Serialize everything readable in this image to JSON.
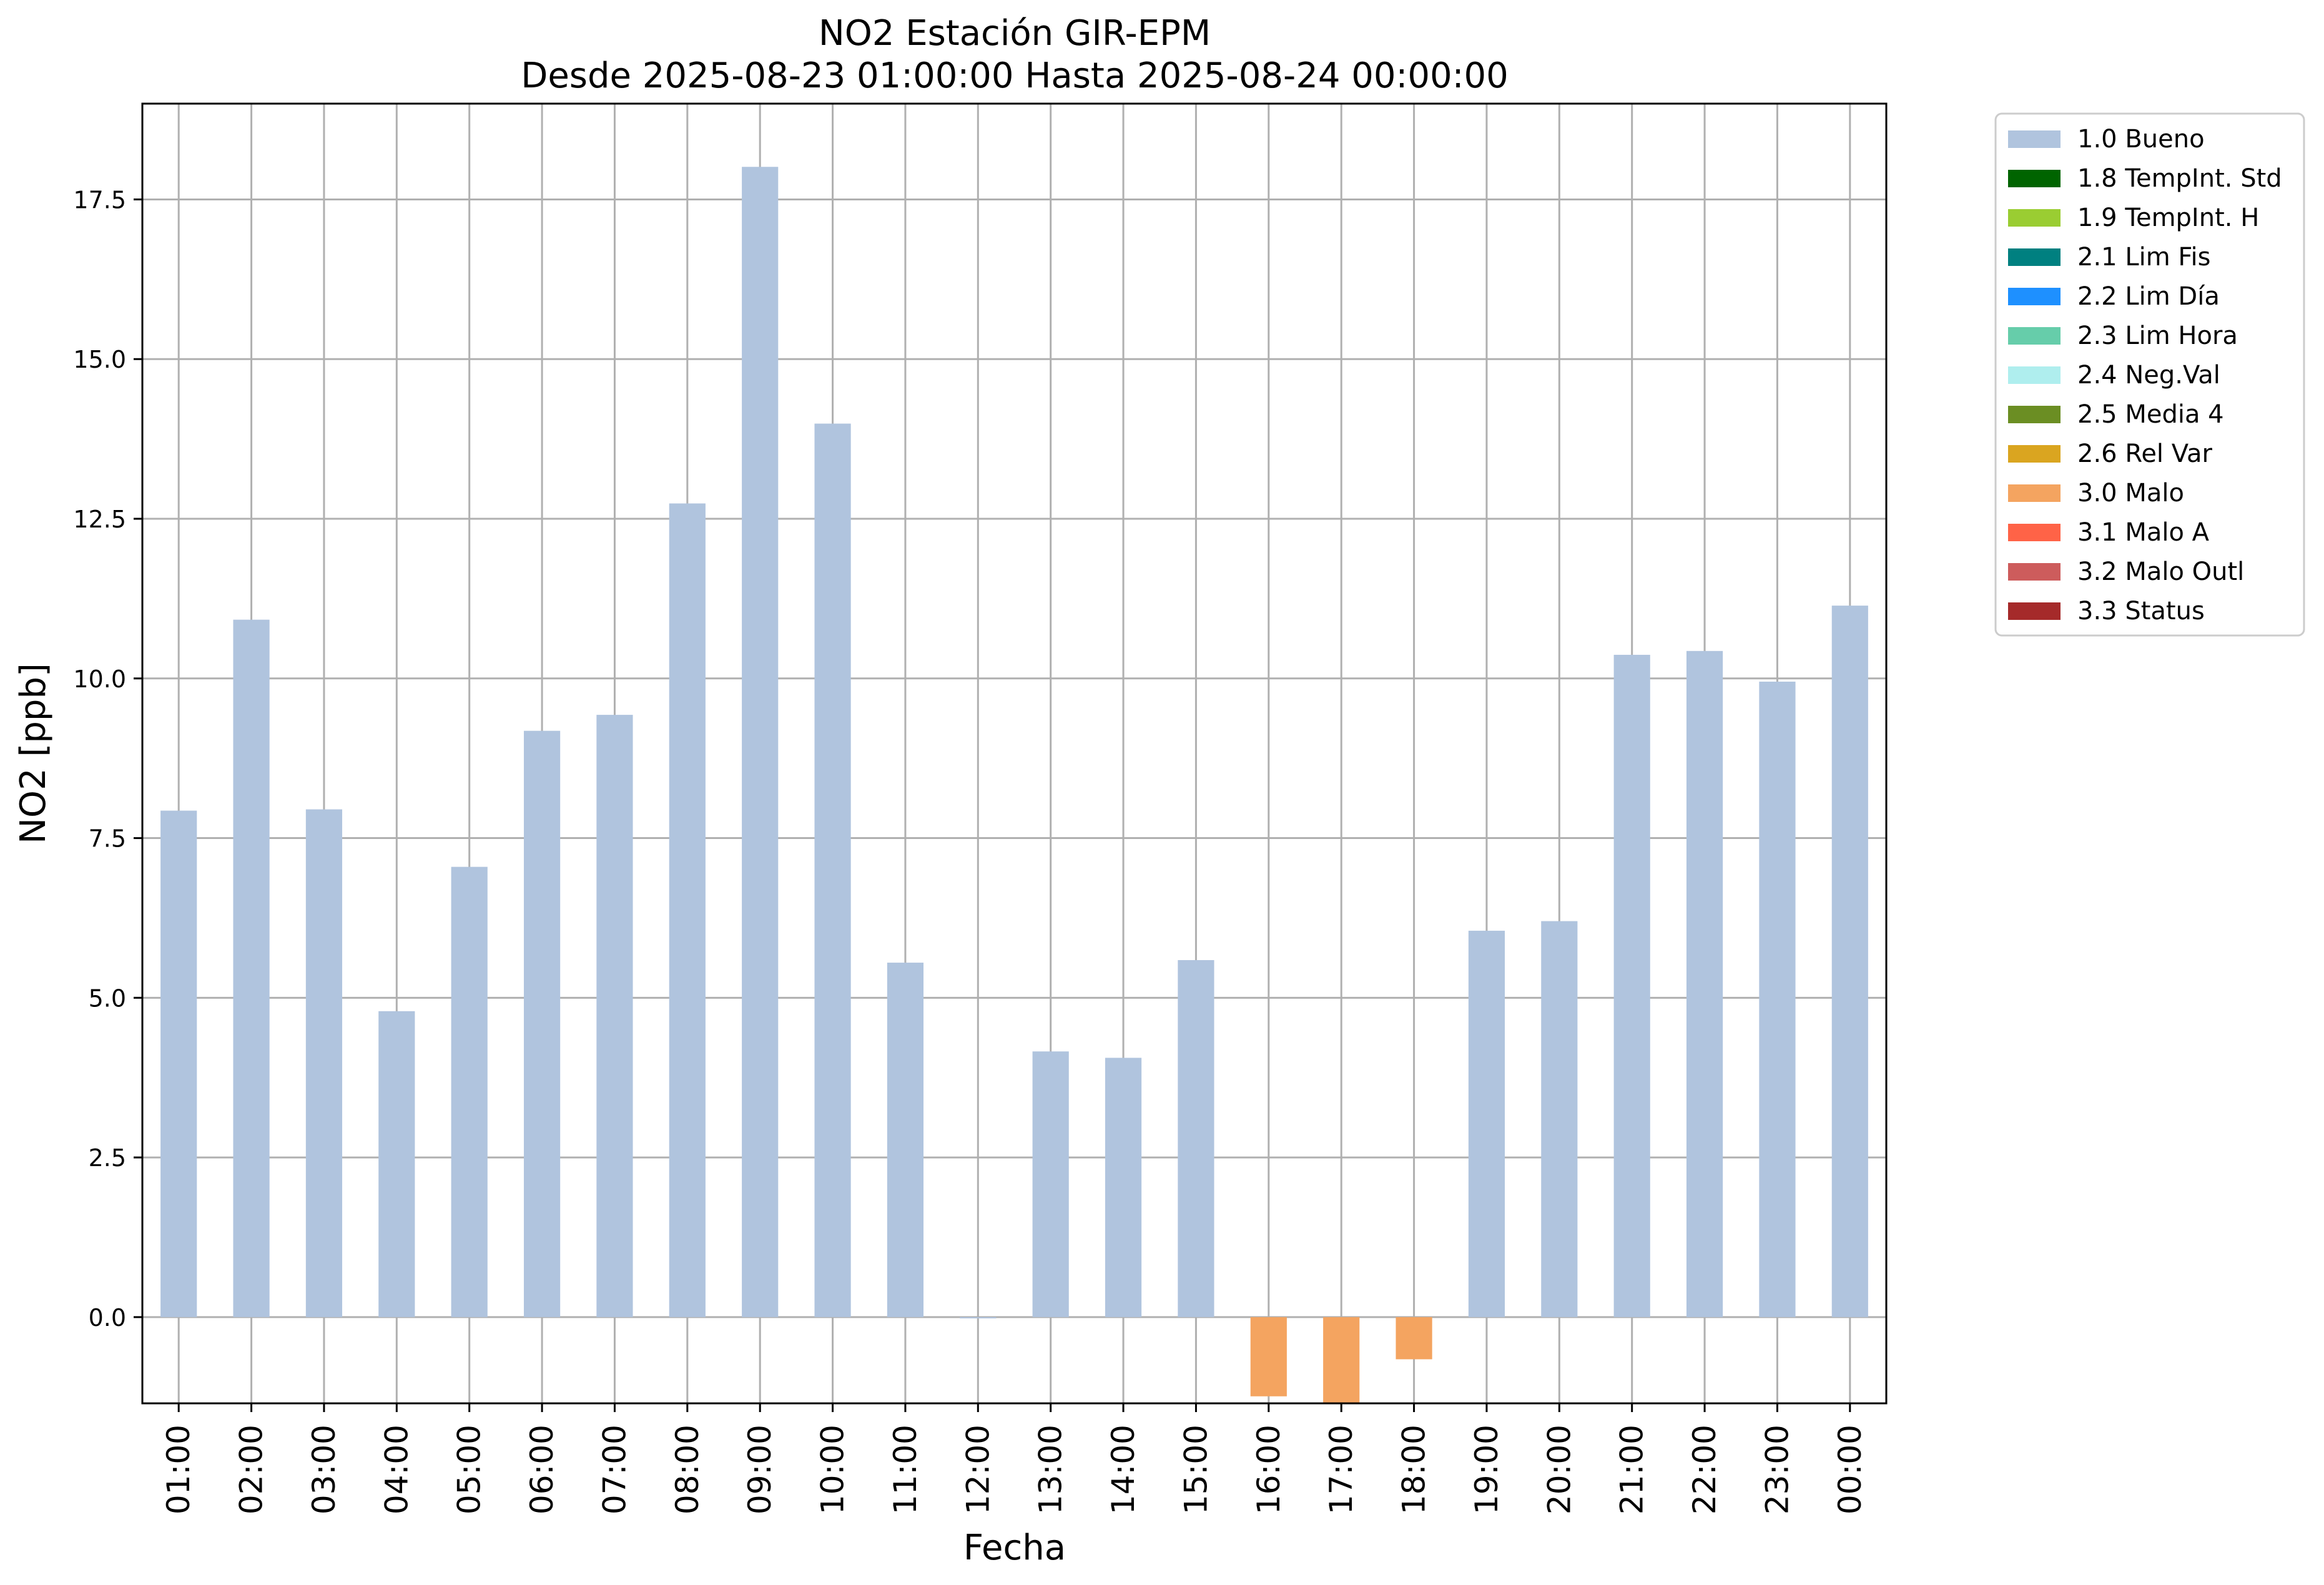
{
  "chart_data": {
    "type": "bar",
    "title": "NO2 Estación GIR-EPM",
    "subtitle": "Desde 2025-08-23 01:00:00 Hasta 2025-08-24 00:00:00",
    "xlabel": "Fecha",
    "ylabel": "NO2 [ppb]",
    "ylim": [
      -1.35,
      19.0
    ],
    "yticks": [
      "0.0",
      "2.5",
      "5.0",
      "7.5",
      "10.0",
      "12.5",
      "15.0",
      "17.5"
    ],
    "grid": true,
    "legend_position": "outside-top-right",
    "categories": [
      "01:00",
      "02:00",
      "03:00",
      "04:00",
      "05:00",
      "06:00",
      "07:00",
      "08:00",
      "09:00",
      "10:00",
      "11:00",
      "12:00",
      "13:00",
      "14:00",
      "15:00",
      "16:00",
      "17:00",
      "18:00",
      "19:00",
      "20:00",
      "21:00",
      "22:00",
      "23:00",
      "00:00"
    ],
    "values": [
      7.93,
      10.92,
      7.95,
      4.79,
      7.05,
      9.18,
      9.43,
      12.74,
      18.01,
      13.99,
      5.55,
      0.0,
      4.16,
      4.06,
      5.59,
      -1.24,
      -1.38,
      -0.66,
      6.05,
      6.2,
      10.37,
      10.43,
      9.95,
      11.14
    ],
    "flags": [
      "1.0",
      "1.0",
      "1.0",
      "1.0",
      "1.0",
      "1.0",
      "1.0",
      "1.0",
      "1.0",
      "1.0",
      "1.0",
      "1.0",
      "1.0",
      "1.0",
      "1.0",
      "3.0",
      "3.0",
      "3.0",
      "1.0",
      "1.0",
      "1.0",
      "1.0",
      "1.0",
      "1.0"
    ],
    "legend": [
      {
        "code": "1.0",
        "label": "1.0 Bueno",
        "color": "#b0c4de"
      },
      {
        "code": "1.8",
        "label": "1.8 TempInt. Std",
        "color": "#006400"
      },
      {
        "code": "1.9",
        "label": "1.9 TempInt. H",
        "color": "#9acd32"
      },
      {
        "code": "2.1",
        "label": "2.1 Lim Fis",
        "color": "#008080"
      },
      {
        "code": "2.2",
        "label": "2.2 Lim Día",
        "color": "#1e90ff"
      },
      {
        "code": "2.3",
        "label": "2.3 Lim Hora",
        "color": "#66cdaa"
      },
      {
        "code": "2.4",
        "label": "2.4 Neg.Val",
        "color": "#afeeee"
      },
      {
        "code": "2.5",
        "label": "2.5 Media 4",
        "color": "#6b8e23"
      },
      {
        "code": "2.6",
        "label": "2.6 Rel Var",
        "color": "#daa520"
      },
      {
        "code": "3.0",
        "label": "3.0 Malo",
        "color": "#f4a460"
      },
      {
        "code": "3.1",
        "label": "3.1 Malo A",
        "color": "#ff6347"
      },
      {
        "code": "3.2",
        "label": "3.2 Malo Outl",
        "color": "#cd5c5c"
      },
      {
        "code": "3.3",
        "label": "3.3 Status",
        "color": "#a52a2a"
      }
    ]
  }
}
